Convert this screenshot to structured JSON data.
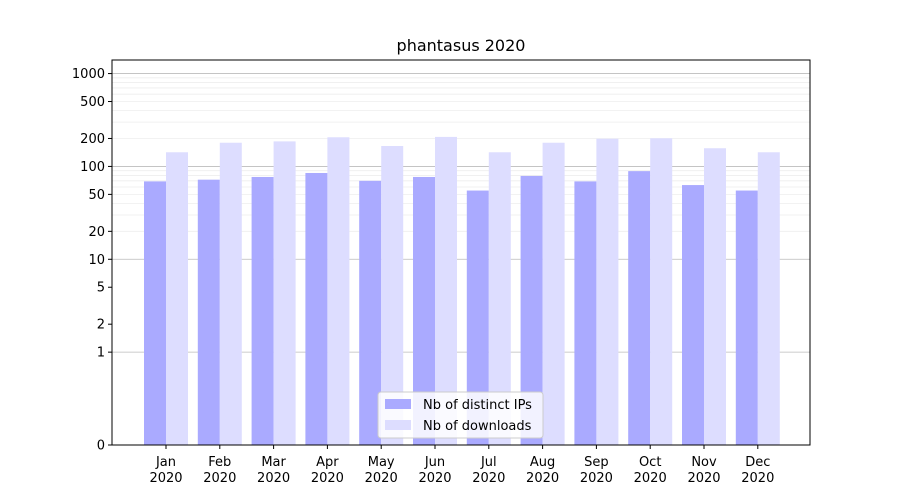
{
  "chart_data": {
    "type": "bar",
    "title": "phantasus 2020",
    "xlabel": "",
    "ylabel": "",
    "categories": [
      "Jan\n2020",
      "Feb\n2020",
      "Mar\n2020",
      "Apr\n2020",
      "May\n2020",
      "Jun\n2020",
      "Jul\n2020",
      "Aug\n2020",
      "Sep\n2020",
      "Oct\n2020",
      "Nov\n2020",
      "Dec\n2020"
    ],
    "series": [
      {
        "name": "Nb of distinct IPs",
        "color": "#aaaaff",
        "values": [
          69,
          72,
          77,
          85,
          70,
          77,
          55,
          79,
          69,
          89,
          63,
          55
        ]
      },
      {
        "name": "Nb of downloads",
        "color": "#ddddff",
        "values": [
          142,
          180,
          186,
          206,
          166,
          208,
          142,
          180,
          199,
          201,
          157,
          142
        ]
      }
    ],
    "yscale": "symlog",
    "ylim": [
      0,
      1400
    ],
    "yticks": [
      0,
      1,
      2,
      5,
      10,
      20,
      50,
      100,
      200,
      500,
      1000
    ],
    "legend": "lower center",
    "grid": true
  }
}
